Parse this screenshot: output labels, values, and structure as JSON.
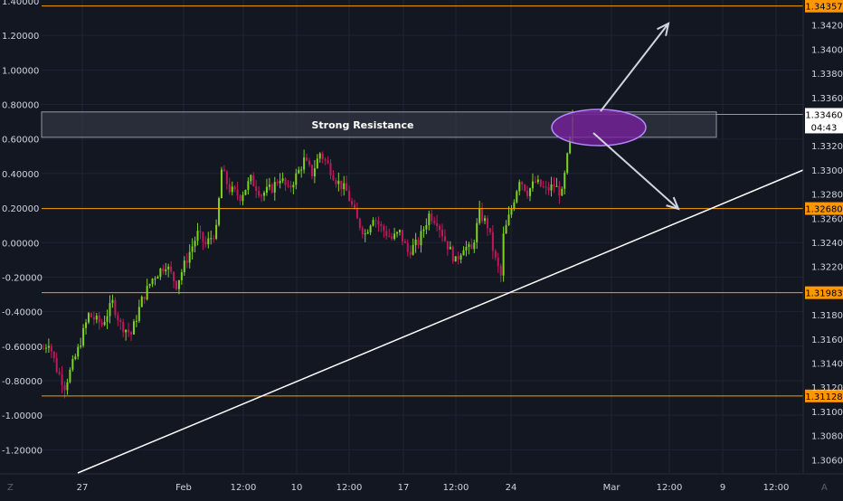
{
  "chart_data": {
    "type": "candlestick",
    "theme": "dark",
    "colors": {
      "background": "#131722",
      "grid": "#1f2433",
      "up": "#7ed321",
      "down": "#c2185b",
      "level_line": "#ff9800",
      "price_tag_bg": "#ff9800",
      "trendline": "#ffffff",
      "annotation": "#d1d4dc",
      "ellipse_fill": "#7b1fa2",
      "ellipse_stroke": "#b388ff",
      "zone_fill": "#3b3f4d",
      "axis_text": "#d1d4dc"
    },
    "x_axis": {
      "labels": [
        "27",
        "Feb",
        "12:00",
        "10",
        "12:00",
        "17",
        "12:00",
        "24",
        "Mar",
        "12:00",
        "9",
        "12:00"
      ]
    },
    "left_axis": {
      "ticks": [
        1.4,
        1.2,
        1.0,
        0.8,
        0.6,
        0.4,
        0.2,
        0.0,
        -0.2,
        -0.4,
        -0.6,
        -0.8,
        -1.0,
        -1.2
      ],
      "labels": [
        "1.40000",
        "1.20000",
        "1.00000",
        "0.80000",
        "0.60000",
        "0.40000",
        "0.20000",
        "0.00000",
        "-0.20000",
        "-0.40000",
        "-0.60000",
        "-0.80000",
        "-1.00000",
        "-1.20000"
      ]
    },
    "right_axis": {
      "range": [
        1.3049,
        1.34407
      ],
      "ticks": [
        1.342,
        1.34,
        1.338,
        1.336,
        1.332,
        1.33,
        1.328,
        1.326,
        1.324,
        1.322,
        1.318,
        1.316,
        1.314,
        1.312,
        1.31,
        1.308,
        1.306
      ],
      "labels": [
        "1.34200",
        "1.34000",
        "1.33800",
        "1.33600",
        "1.33200",
        "1.33000",
        "1.32800",
        "1.32600",
        "1.32400",
        "1.32200",
        "1.31800",
        "1.31600",
        "1.31400",
        "1.31200",
        "1.31000",
        "1.30800",
        "1.30600"
      ]
    },
    "levels": [
      {
        "price": 1.34357,
        "label": "1.34357"
      },
      {
        "price": 1.3268,
        "label": "1.32680"
      },
      {
        "price": 1.31983,
        "label": "1.31983"
      },
      {
        "price": 1.31128,
        "label": "1.31128"
      }
    ],
    "current_price": {
      "price": 1.3346,
      "label": "1.33460",
      "countdown": "04:43"
    },
    "resistance_zone": {
      "price_top": 1.3348,
      "price_bottom": 1.3327,
      "label": "Strong Resistance"
    },
    "candles": {
      "waypoints": [
        [
          0,
          1.3152
        ],
        [
          2,
          1.3158
        ],
        [
          5,
          1.3135
        ],
        [
          8,
          1.3121
        ],
        [
          10,
          1.3133
        ],
        [
          13,
          1.3151
        ],
        [
          17,
          1.318
        ],
        [
          22,
          1.3172
        ],
        [
          26,
          1.319
        ],
        [
          29,
          1.3172
        ],
        [
          33,
          1.3164
        ],
        [
          37,
          1.3192
        ],
        [
          41,
          1.321
        ],
        [
          46,
          1.3222
        ],
        [
          50,
          1.3205
        ],
        [
          55,
          1.3232
        ],
        [
          58,
          1.3247
        ],
        [
          61,
          1.3238
        ],
        [
          65,
          1.325
        ],
        [
          67,
          1.33
        ],
        [
          70,
          1.3284
        ],
        [
          74,
          1.3278
        ],
        [
          78,
          1.3292
        ],
        [
          82,
          1.328
        ],
        [
          86,
          1.3285
        ],
        [
          89,
          1.3294
        ],
        [
          92,
          1.3283
        ],
        [
          96,
          1.3299
        ],
        [
          98,
          1.3308
        ],
        [
          101,
          1.3297
        ],
        [
          104,
          1.3314
        ],
        [
          107,
          1.3304
        ],
        [
          110,
          1.3292
        ],
        [
          114,
          1.3282
        ],
        [
          118,
          1.3258
        ],
        [
          121,
          1.3247
        ],
        [
          124,
          1.3262
        ],
        [
          127,
          1.3252
        ],
        [
          131,
          1.3243
        ],
        [
          134,
          1.3248
        ],
        [
          137,
          1.3232
        ],
        [
          141,
          1.324
        ],
        [
          145,
          1.3263
        ],
        [
          148,
          1.3258
        ],
        [
          151,
          1.3242
        ],
        [
          155,
          1.3224
        ],
        [
          158,
          1.3237
        ],
        [
          161,
          1.3233
        ],
        [
          164,
          1.3264
        ],
        [
          167,
          1.3254
        ],
        [
          170,
          1.3225
        ],
        [
          172,
          1.3212
        ],
        [
          173,
          1.3245
        ],
        [
          176,
          1.3268
        ],
        [
          179,
          1.3293
        ],
        [
          182,
          1.3282
        ],
        [
          185,
          1.329
        ],
        [
          189,
          1.3283
        ],
        [
          192,
          1.3287
        ],
        [
          195,
          1.328
        ],
        [
          198,
          1.3325
        ],
        [
          199,
          1.3341
        ]
      ]
    }
  }
}
